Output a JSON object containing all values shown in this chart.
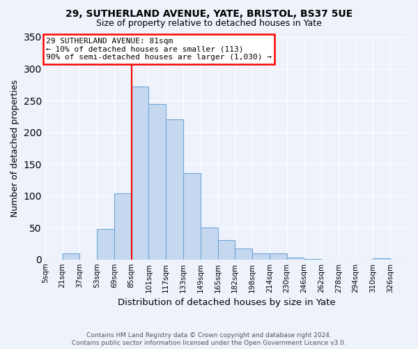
{
  "title1": "29, SUTHERLAND AVENUE, YATE, BRISTOL, BS37 5UE",
  "title2": "Size of property relative to detached houses in Yate",
  "xlabel": "Distribution of detached houses by size in Yate",
  "ylabel": "Number of detached properties",
  "bin_labels": [
    "5sqm",
    "21sqm",
    "37sqm",
    "53sqm",
    "69sqm",
    "85sqm",
    "101sqm",
    "117sqm",
    "133sqm",
    "149sqm",
    "165sqm",
    "182sqm",
    "198sqm",
    "214sqm",
    "230sqm",
    "246sqm",
    "262sqm",
    "278sqm",
    "294sqm",
    "310sqm",
    "326sqm"
  ],
  "bin_values": [
    0,
    10,
    0,
    48,
    104,
    272,
    245,
    220,
    136,
    50,
    30,
    17,
    10,
    10,
    3,
    1,
    0,
    0,
    0,
    2,
    0
  ],
  "bar_color": "#c5d8f0",
  "bar_edge_color": "#6fa8d6",
  "vline_x": 5,
  "vline_color": "red",
  "annotation_lines": [
    "29 SUTHERLAND AVENUE: 81sqm",
    "← 10% of detached houses are smaller (113)",
    "90% of semi-detached houses are larger (1,030) →"
  ],
  "ylim": [
    0,
    350
  ],
  "yticks": [
    0,
    50,
    100,
    150,
    200,
    250,
    300,
    350
  ],
  "footnote1": "Contains HM Land Registry data © Crown copyright and database right 2024.",
  "footnote2": "Contains public sector information licensed under the Open Government Licence v3.0.",
  "background_color": "#eef2fb"
}
